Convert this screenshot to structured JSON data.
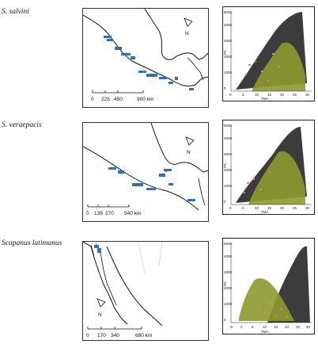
{
  "rows": [
    {
      "species": "S. salvini",
      "map": {
        "scale_ticks": [
          "0",
          "225",
          "450",
          "900 km"
        ],
        "north": "N"
      },
      "scatter": {
        "xlabel": "TMA",
        "ylabel": "PA",
        "xticks": [
          "0",
          "5",
          "10",
          "15",
          "20",
          "25",
          "30"
        ],
        "yticks": [
          "0",
          "1000",
          "2000",
          "3000",
          "4000",
          "5000"
        ]
      }
    },
    {
      "species": "S. veraepacis",
      "map": {
        "scale_ticks": [
          "0",
          "135",
          "270",
          "540 km"
        ],
        "north": "N"
      },
      "scatter": {
        "xlabel": "TMA",
        "ylabel": "PA",
        "xticks": [
          "0",
          "5",
          "10",
          "15",
          "20",
          "25",
          "30"
        ],
        "yticks": [
          "0",
          "1000",
          "2000",
          "3000",
          "4000",
          "5000"
        ]
      }
    },
    {
      "species": "Scapanus latimanus",
      "map": {
        "scale_ticks": [
          "0",
          "170",
          "340",
          "680 km"
        ],
        "north": "N"
      },
      "scatter": {
        "xlabel": "TMA",
        "ylabel": "PA",
        "xticks": [
          "-5",
          "0",
          "5",
          "10",
          "15",
          "20",
          "25",
          "30"
        ],
        "yticks": [
          "0",
          "1000",
          "2000",
          "3000",
          "4000",
          "5000"
        ]
      }
    }
  ],
  "colors": {
    "black": "#1a1a1a",
    "olive": "#8c9a2c",
    "pink": "#e0827e",
    "blue": "#2b6fd6"
  }
}
